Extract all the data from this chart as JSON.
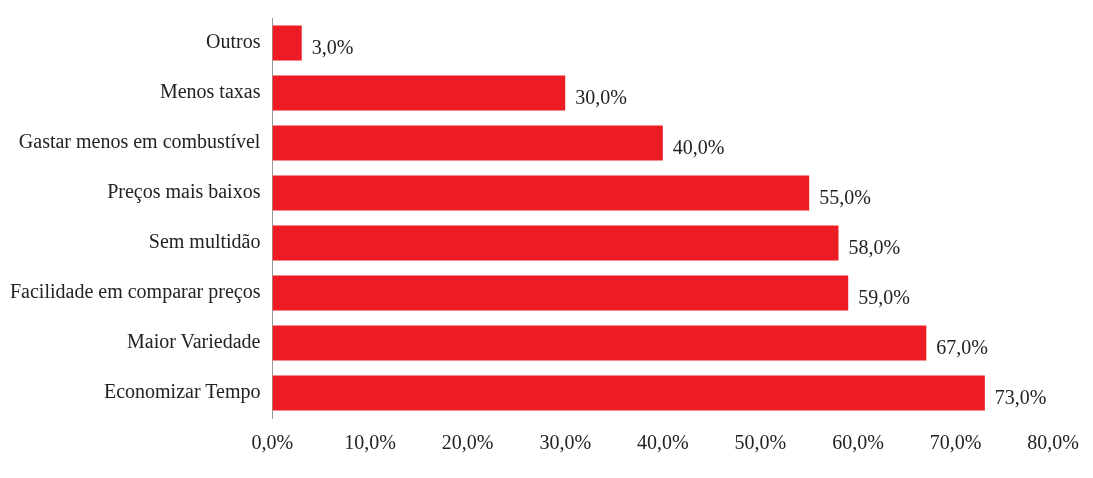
{
  "chart_data": {
    "type": "bar",
    "orientation": "horizontal",
    "categories": [
      "Outros",
      "Menos taxas",
      "Gastar menos em combustível",
      "Preços mais baixos",
      "Sem multidão",
      "Facilidade em comparar preços",
      "Maior Variedade",
      "Economizar Tempo"
    ],
    "values": [
      3,
      30,
      40,
      55,
      58,
      59,
      67,
      73
    ],
    "value_labels": [
      "3,0%",
      "30,0%",
      "40,0%",
      "55,0%",
      "58,0%",
      "59,0%",
      "67,0%",
      "73,0%"
    ],
    "color": "#ed1c24",
    "xlim": [
      0,
      80
    ],
    "xticks": [
      {
        "value": 0,
        "label": "0,0%"
      },
      {
        "value": 10,
        "label": "10,0%"
      },
      {
        "value": 20,
        "label": "20,0%"
      },
      {
        "value": 30,
        "label": "30,0%"
      },
      {
        "value": 40,
        "label": "40,0%"
      },
      {
        "value": 50,
        "label": "50,0%"
      },
      {
        "value": 60,
        "label": "60,0%"
      },
      {
        "value": 70,
        "label": "70,0%"
      },
      {
        "value": 80,
        "label": "80,0%"
      }
    ],
    "grid": false,
    "legend": false
  }
}
